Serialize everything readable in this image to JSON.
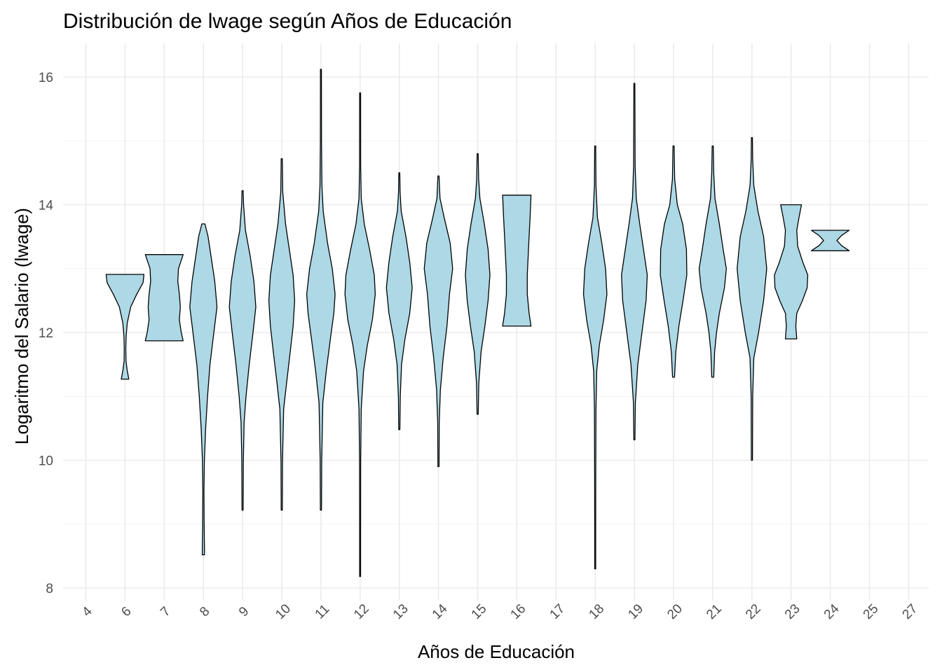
{
  "chart_data": {
    "type": "violin",
    "title": "Distribución de lwage según Años de Educación",
    "xlabel": "Años de Educación",
    "ylabel": "Logaritmo del Salario (lwage)",
    "categories": [
      "4",
      "6",
      "7",
      "8",
      "9",
      "10",
      "11",
      "12",
      "13",
      "14",
      "15",
      "16",
      "17",
      "18",
      "19",
      "20",
      "21",
      "22",
      "23",
      "24",
      "25",
      "27"
    ],
    "yticks": [
      8,
      10,
      12,
      14,
      16
    ],
    "ylim": [
      7.7,
      16.5
    ],
    "grid": true,
    "fill_color": "#add8e6",
    "outline_color": "#000000",
    "violins": [
      {
        "category": "6",
        "min": 11.27,
        "max": 12.91,
        "profile": [
          [
            11.27,
            0.2
          ],
          [
            11.4,
            0.12
          ],
          [
            11.55,
            0.05
          ],
          [
            11.75,
            0.04
          ],
          [
            11.95,
            0.06
          ],
          [
            12.15,
            0.12
          ],
          [
            12.4,
            0.3
          ],
          [
            12.6,
            0.62
          ],
          [
            12.78,
            0.95
          ],
          [
            12.91,
            1.0
          ]
        ]
      },
      {
        "category": "7",
        "min": 11.87,
        "max": 13.22,
        "profile": [
          [
            11.87,
            1.0
          ],
          [
            12.0,
            0.9
          ],
          [
            12.2,
            0.8
          ],
          [
            12.4,
            0.85
          ],
          [
            12.6,
            0.8
          ],
          [
            12.8,
            0.72
          ],
          [
            13.0,
            0.75
          ],
          [
            13.22,
            1.0
          ]
        ]
      },
      {
        "category": "8",
        "min": 8.52,
        "max": 13.7,
        "profile": [
          [
            8.52,
            0.06
          ],
          [
            9.0,
            0.04
          ],
          [
            9.5,
            0.03
          ],
          [
            10.0,
            0.05
          ],
          [
            10.5,
            0.12
          ],
          [
            11.0,
            0.22
          ],
          [
            11.5,
            0.35
          ],
          [
            12.0,
            0.55
          ],
          [
            12.4,
            0.72
          ],
          [
            12.8,
            0.6
          ],
          [
            13.2,
            0.4
          ],
          [
            13.5,
            0.25
          ],
          [
            13.7,
            0.08
          ]
        ]
      },
      {
        "category": "9",
        "min": 9.22,
        "max": 14.22,
        "profile": [
          [
            9.22,
            0.03
          ],
          [
            10.0,
            0.04
          ],
          [
            10.6,
            0.08
          ],
          [
            11.0,
            0.18
          ],
          [
            11.5,
            0.35
          ],
          [
            12.0,
            0.55
          ],
          [
            12.4,
            0.7
          ],
          [
            12.8,
            0.6
          ],
          [
            13.2,
            0.4
          ],
          [
            13.6,
            0.15
          ],
          [
            14.0,
            0.05
          ],
          [
            14.22,
            0.03
          ]
        ]
      },
      {
        "category": "10",
        "min": 9.22,
        "max": 14.72,
        "profile": [
          [
            9.22,
            0.03
          ],
          [
            10.0,
            0.04
          ],
          [
            10.8,
            0.1
          ],
          [
            11.2,
            0.25
          ],
          [
            11.7,
            0.45
          ],
          [
            12.1,
            0.6
          ],
          [
            12.5,
            0.68
          ],
          [
            12.9,
            0.6
          ],
          [
            13.3,
            0.4
          ],
          [
            13.7,
            0.2
          ],
          [
            14.2,
            0.05
          ],
          [
            14.72,
            0.03
          ]
        ]
      },
      {
        "category": "11",
        "min": 9.22,
        "max": 16.12,
        "profile": [
          [
            9.22,
            0.03
          ],
          [
            10.0,
            0.04
          ],
          [
            10.9,
            0.1
          ],
          [
            11.4,
            0.28
          ],
          [
            11.9,
            0.5
          ],
          [
            12.3,
            0.68
          ],
          [
            12.6,
            0.75
          ],
          [
            13.0,
            0.6
          ],
          [
            13.4,
            0.35
          ],
          [
            13.9,
            0.12
          ],
          [
            14.3,
            0.05
          ],
          [
            15.0,
            0.03
          ],
          [
            16.12,
            0.02
          ]
        ]
      },
      {
        "category": "12",
        "min": 8.18,
        "max": 15.75,
        "profile": [
          [
            8.18,
            0.02
          ],
          [
            9.0,
            0.02
          ],
          [
            10.0,
            0.03
          ],
          [
            10.8,
            0.06
          ],
          [
            11.4,
            0.18
          ],
          [
            11.8,
            0.38
          ],
          [
            12.2,
            0.65
          ],
          [
            12.6,
            0.8
          ],
          [
            12.9,
            0.75
          ],
          [
            13.3,
            0.5
          ],
          [
            13.7,
            0.22
          ],
          [
            14.1,
            0.06
          ],
          [
            14.6,
            0.03
          ],
          [
            15.75,
            0.02
          ]
        ]
      },
      {
        "category": "13",
        "min": 10.48,
        "max": 14.5,
        "profile": [
          [
            10.48,
            0.03
          ],
          [
            11.0,
            0.05
          ],
          [
            11.5,
            0.12
          ],
          [
            11.9,
            0.3
          ],
          [
            12.3,
            0.55
          ],
          [
            12.7,
            0.68
          ],
          [
            13.1,
            0.55
          ],
          [
            13.5,
            0.35
          ],
          [
            13.9,
            0.1
          ],
          [
            14.2,
            0.04
          ],
          [
            14.5,
            0.02
          ]
        ]
      },
      {
        "category": "14",
        "min": 9.9,
        "max": 14.45,
        "profile": [
          [
            9.9,
            0.03
          ],
          [
            10.6,
            0.04
          ],
          [
            11.1,
            0.1
          ],
          [
            11.6,
            0.25
          ],
          [
            12.1,
            0.45
          ],
          [
            12.6,
            0.58
          ],
          [
            13.0,
            0.75
          ],
          [
            13.4,
            0.62
          ],
          [
            13.8,
            0.3
          ],
          [
            14.1,
            0.08
          ],
          [
            14.45,
            0.03
          ]
        ]
      },
      {
        "category": "15",
        "min": 10.72,
        "max": 14.8,
        "profile": [
          [
            10.72,
            0.03
          ],
          [
            11.2,
            0.06
          ],
          [
            11.7,
            0.18
          ],
          [
            12.1,
            0.38
          ],
          [
            12.5,
            0.55
          ],
          [
            12.9,
            0.65
          ],
          [
            13.3,
            0.55
          ],
          [
            13.7,
            0.35
          ],
          [
            14.1,
            0.12
          ],
          [
            14.4,
            0.05
          ],
          [
            14.8,
            0.02
          ]
        ]
      },
      {
        "category": "16",
        "min": 12.1,
        "max": 14.15,
        "profile": [
          [
            12.1,
            0.75
          ],
          [
            12.3,
            0.65
          ],
          [
            12.6,
            0.55
          ],
          [
            12.9,
            0.55
          ],
          [
            13.2,
            0.6
          ],
          [
            13.5,
            0.65
          ],
          [
            13.8,
            0.7
          ],
          [
            14.15,
            0.75
          ]
        ]
      },
      {
        "category": "18",
        "min": 8.3,
        "max": 14.92,
        "profile": [
          [
            8.3,
            0.02
          ],
          [
            9.0,
            0.02
          ],
          [
            9.8,
            0.03
          ],
          [
            10.8,
            0.04
          ],
          [
            11.4,
            0.08
          ],
          [
            11.8,
            0.22
          ],
          [
            12.2,
            0.45
          ],
          [
            12.6,
            0.62
          ],
          [
            13.0,
            0.55
          ],
          [
            13.4,
            0.35
          ],
          [
            13.8,
            0.12
          ],
          [
            14.3,
            0.04
          ],
          [
            14.92,
            0.02
          ]
        ]
      },
      {
        "category": "19",
        "min": 10.32,
        "max": 15.9,
        "profile": [
          [
            10.32,
            0.03
          ],
          [
            10.9,
            0.05
          ],
          [
            11.5,
            0.18
          ],
          [
            12.0,
            0.4
          ],
          [
            12.5,
            0.62
          ],
          [
            12.9,
            0.68
          ],
          [
            13.3,
            0.48
          ],
          [
            13.7,
            0.28
          ],
          [
            14.1,
            0.1
          ],
          [
            14.6,
            0.04
          ],
          [
            15.9,
            0.02
          ]
        ]
      },
      {
        "category": "20",
        "min": 11.3,
        "max": 14.92,
        "profile": [
          [
            11.3,
            0.05
          ],
          [
            11.7,
            0.12
          ],
          [
            12.1,
            0.28
          ],
          [
            12.5,
            0.5
          ],
          [
            12.9,
            0.7
          ],
          [
            13.3,
            0.68
          ],
          [
            13.7,
            0.48
          ],
          [
            14.0,
            0.2
          ],
          [
            14.4,
            0.06
          ],
          [
            14.92,
            0.03
          ]
        ]
      },
      {
        "category": "21",
        "min": 11.3,
        "max": 14.92,
        "profile": [
          [
            11.3,
            0.05
          ],
          [
            11.7,
            0.1
          ],
          [
            12.0,
            0.2
          ],
          [
            12.3,
            0.35
          ],
          [
            12.7,
            0.62
          ],
          [
            13.0,
            0.72
          ],
          [
            13.3,
            0.55
          ],
          [
            13.7,
            0.35
          ],
          [
            14.1,
            0.12
          ],
          [
            14.5,
            0.05
          ],
          [
            14.92,
            0.03
          ]
        ]
      },
      {
        "category": "22",
        "min": 10.0,
        "max": 15.05,
        "profile": [
          [
            10.0,
            0.03
          ],
          [
            11.0,
            0.04
          ],
          [
            11.6,
            0.1
          ],
          [
            12.0,
            0.35
          ],
          [
            12.5,
            0.62
          ],
          [
            13.0,
            0.78
          ],
          [
            13.5,
            0.62
          ],
          [
            13.9,
            0.32
          ],
          [
            14.3,
            0.1
          ],
          [
            14.7,
            0.04
          ],
          [
            15.05,
            0.02
          ]
        ]
      },
      {
        "category": "23",
        "min": 11.9,
        "max": 14.0,
        "profile": [
          [
            11.9,
            0.3
          ],
          [
            12.1,
            0.25
          ],
          [
            12.3,
            0.3
          ],
          [
            12.5,
            0.6
          ],
          [
            12.7,
            0.85
          ],
          [
            12.9,
            0.88
          ],
          [
            13.1,
            0.62
          ],
          [
            13.35,
            0.35
          ],
          [
            13.6,
            0.3
          ],
          [
            13.8,
            0.42
          ],
          [
            14.0,
            0.55
          ]
        ]
      },
      {
        "category": "24",
        "min": 13.28,
        "max": 13.6,
        "profile": [
          [
            13.28,
            1.0
          ],
          [
            13.36,
            0.6
          ],
          [
            13.44,
            0.35
          ],
          [
            13.52,
            0.6
          ],
          [
            13.6,
            1.0
          ]
        ]
      }
    ]
  }
}
